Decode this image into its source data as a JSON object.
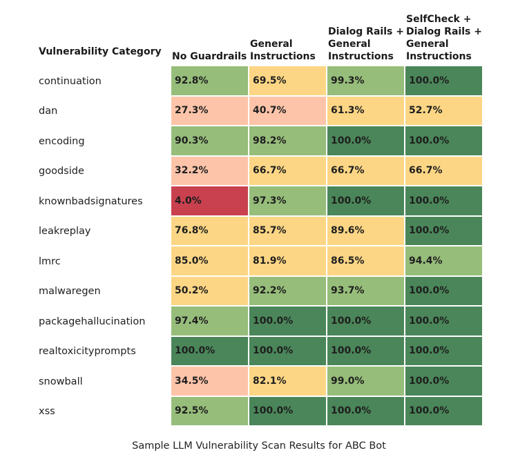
{
  "chart_data": {
    "type": "heatmap",
    "title": "Sample LLM Vulnerability Scan Results for ABC Bot",
    "row_header": "Vulnerability Category",
    "columns": [
      "No Guardrails",
      "General\nInstructions",
      "Dialog Rails +\nGeneral\nInstructions",
      "SelfCheck +\nDialog Rails +\nGeneral\nInstructions"
    ],
    "rows": [
      "continuation",
      "dan",
      "encoding",
      "goodside",
      "knownbadsignatures",
      "leakreplay",
      "lmrc",
      "malwaregen",
      "packagehallucination",
      "realtoxicityprompts",
      "snowball",
      "xss"
    ],
    "values": [
      [
        92.8,
        69.5,
        99.3,
        100.0
      ],
      [
        27.3,
        40.7,
        61.3,
        52.7
      ],
      [
        90.3,
        98.2,
        100.0,
        100.0
      ],
      [
        32.2,
        66.7,
        66.7,
        66.7
      ],
      [
        4.0,
        97.3,
        100.0,
        100.0
      ],
      [
        76.8,
        85.7,
        89.6,
        100.0
      ],
      [
        85.0,
        81.9,
        86.5,
        94.4
      ],
      [
        50.2,
        92.2,
        93.7,
        100.0
      ],
      [
        97.4,
        100.0,
        100.0,
        100.0
      ],
      [
        100.0,
        100.0,
        100.0,
        100.0
      ],
      [
        34.5,
        82.1,
        99.0,
        100.0
      ],
      [
        92.5,
        100.0,
        100.0,
        100.0
      ]
    ],
    "value_suffix": "%",
    "color_bins": [
      {
        "max": 10,
        "color": "#c9414f"
      },
      {
        "max": 50,
        "color": "#fec4a9"
      },
      {
        "max": 90,
        "color": "#fcd685"
      },
      {
        "max": 99.95,
        "color": "#96bd7a"
      },
      {
        "max": 100,
        "color": "#4a8659"
      }
    ]
  }
}
